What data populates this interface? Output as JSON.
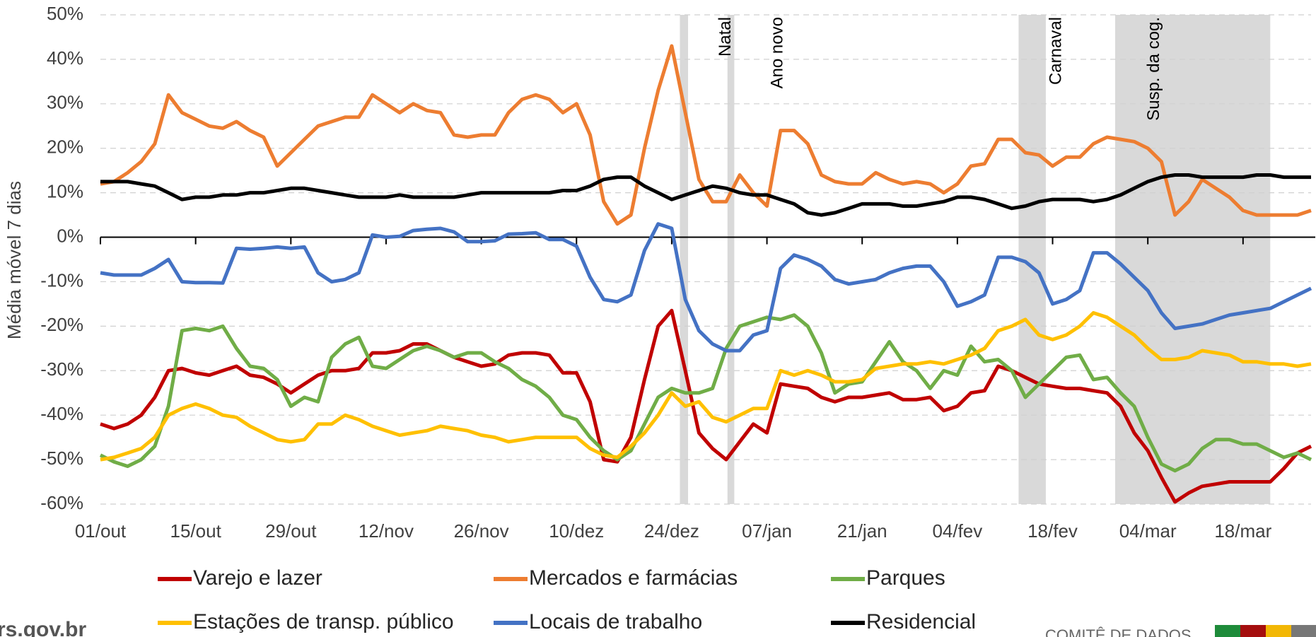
{
  "chart_data": {
    "type": "line",
    "y_label": "Média móvel 7 dias",
    "categories": [
      "01/out",
      null,
      null,
      null,
      null,
      null,
      null,
      "15/out",
      null,
      null,
      null,
      null,
      null,
      null,
      "29/out",
      null,
      null,
      null,
      null,
      null,
      null,
      "12/nov",
      null,
      null,
      null,
      null,
      null,
      null,
      "26/nov",
      null,
      null,
      null,
      null,
      null,
      null,
      "10/dez",
      null,
      null,
      null,
      null,
      null,
      null,
      "24/dez",
      null,
      null,
      null,
      null,
      null,
      null,
      "07/jan",
      null,
      null,
      null,
      null,
      null,
      null,
      "21/jan",
      null,
      null,
      null,
      null,
      null,
      null,
      "04/fev",
      null,
      null,
      null,
      null,
      null,
      null,
      "18/fev",
      null,
      null,
      null,
      null,
      null,
      null,
      "04/mar",
      null,
      null,
      null,
      null,
      null,
      null,
      "18/mar",
      null,
      null,
      null,
      null,
      null
    ],
    "ylim": [
      -60,
      50
    ],
    "yticks": [
      {
        "value": -60,
        "label": "-60%"
      },
      {
        "value": -50,
        "label": "-50%"
      },
      {
        "value": -40,
        "label": "-40%"
      },
      {
        "value": -30,
        "label": "-30%"
      },
      {
        "value": -20,
        "label": "-20%"
      },
      {
        "value": -10,
        "label": "-10%"
      },
      {
        "value": 0,
        "label": "0%"
      },
      {
        "value": 10,
        "label": "10%"
      },
      {
        "value": 20,
        "label": "20%"
      },
      {
        "value": 30,
        "label": "30%"
      },
      {
        "value": 40,
        "label": "40%"
      },
      {
        "value": 50,
        "label": "50%"
      }
    ],
    "grid": true,
    "annotations": [
      "Natal",
      "Ano novo",
      "Carnaval",
      "Susp. da cog."
    ],
    "series": [
      {
        "name": "Varejo e lazer",
        "color": "#c00000",
        "values": [
          -42,
          -43,
          -42,
          -40,
          -36,
          -30,
          -29.5,
          -30.5,
          -31,
          -30,
          -29,
          -31,
          -31.5,
          -33,
          -35,
          -33,
          -31,
          -30,
          -30,
          -29.5,
          -26,
          -26,
          -25.5,
          -24,
          -24,
          -25.5,
          -27,
          -28,
          -29,
          -28.5,
          -26.5,
          -26,
          -26,
          -26.5,
          -30.5,
          -30.5,
          -37,
          -50,
          -50.5,
          -45,
          -32,
          -20,
          -16.5,
          -30,
          -44,
          -47.5,
          -50,
          -46,
          -42,
          -44,
          -33,
          -33.5,
          -34,
          -36,
          -37,
          -36,
          -36,
          -35.5,
          -35,
          -36.5,
          -36.5,
          -36,
          -39,
          -38,
          -35,
          -34.5,
          -29,
          -30,
          -31.5,
          -33,
          -33.5,
          -34,
          -34,
          -34.5,
          -35,
          -38,
          -44,
          -48,
          -54,
          -59.5,
          -57.5,
          -56,
          -55.5,
          -55,
          -55,
          -55,
          -55,
          -52,
          -48.5,
          -47
        ]
      },
      {
        "name": "Mercados e farmácias",
        "color": "#ed7d31",
        "values": [
          12,
          12.5,
          14.5,
          17,
          21,
          32,
          28,
          26.5,
          25,
          24.5,
          26,
          24,
          22.5,
          16,
          19,
          22,
          25,
          26,
          27,
          27,
          32,
          30,
          28,
          30,
          28.5,
          28,
          23,
          22.5,
          23,
          23,
          28,
          31,
          32,
          31,
          28,
          30,
          23,
          8,
          3,
          5,
          20,
          33,
          43,
          28,
          13,
          8,
          8,
          14,
          10,
          7,
          24,
          24,
          21,
          14,
          12.5,
          12,
          12,
          14.5,
          13,
          12,
          12.5,
          12,
          10,
          12,
          16,
          16.5,
          22,
          22,
          19,
          18.5,
          16,
          18,
          18,
          21,
          22.5,
          22,
          21.5,
          20,
          17,
          5,
          8,
          13,
          11,
          9,
          6,
          5,
          5,
          5,
          5,
          6
        ]
      },
      {
        "name": "Parques",
        "color": "#70ad47",
        "values": [
          -49,
          -50.5,
          -51.5,
          -50,
          -47,
          -38,
          -21,
          -20.5,
          -21,
          -20,
          -25,
          -29,
          -29.5,
          -32,
          -38,
          -36,
          -37,
          -27,
          -24,
          -22.5,
          -29,
          -29.5,
          -27.5,
          -25.5,
          -24.5,
          -25.5,
          -27,
          -26,
          -26,
          -28,
          -29.5,
          -32,
          -33.5,
          -36,
          -40,
          -41,
          -45,
          -48,
          -50,
          -48,
          -42,
          -36,
          -34,
          -35,
          -35,
          -34,
          -25,
          -20,
          -19,
          -18,
          -18.5,
          -17.5,
          -20,
          -26,
          -35,
          -33,
          -32.5,
          -28,
          -23.5,
          -28,
          -30,
          -34,
          -30,
          -31,
          -24.5,
          -28,
          -27.5,
          -30,
          -36,
          -33,
          -30,
          -27,
          -26.5,
          -32,
          -31.5,
          -35,
          -38,
          -45,
          -51,
          -52.5,
          -51,
          -47.5,
          -45.5,
          -45.5,
          -46.5,
          -46.5,
          -48,
          -49.5,
          -48.5,
          -50
        ]
      },
      {
        "name": "Estações de transp. público",
        "color": "#ffc000",
        "values": [
          -50,
          -49.5,
          -48.5,
          -47.5,
          -45,
          -40,
          -38.5,
          -37.5,
          -38.5,
          -40,
          -40.5,
          -42.5,
          -44,
          -45.5,
          -46,
          -45.5,
          -42,
          -42,
          -40,
          -41,
          -42.5,
          -43.5,
          -44.5,
          -44,
          -43.5,
          -42.5,
          -43,
          -43.5,
          -44.5,
          -45,
          -46,
          -45.5,
          -45,
          -45,
          -45,
          -45,
          -47.5,
          -49,
          -49.5,
          -47,
          -44,
          -40,
          -35,
          -38,
          -37,
          -40.5,
          -41.5,
          -40,
          -38.5,
          -38.5,
          -30,
          -31,
          -30,
          -31,
          -32.5,
          -32.5,
          -32,
          -29.5,
          -29,
          -28.5,
          -28.5,
          -28,
          -28.5,
          -27.5,
          -26.5,
          -25,
          -21,
          -20,
          -18.5,
          -22,
          -23,
          -22,
          -20,
          -17,
          -18,
          -20,
          -22,
          -25,
          -27.5,
          -27.5,
          -27,
          -25.5,
          -26,
          -26.5,
          -28,
          -28,
          -28.5,
          -28.5,
          -29,
          -28.5
        ]
      },
      {
        "name": "Locais de trabalho",
        "color": "#4472c4",
        "values": [
          -8,
          -8.5,
          -8.5,
          -8.5,
          -7,
          -5,
          -10,
          -10.2,
          -10.2,
          -10.3,
          -2.5,
          -2.7,
          -2.5,
          -2.2,
          -2.5,
          -2.2,
          -8,
          -10,
          -9.5,
          -8,
          0.5,
          0,
          0.2,
          1.5,
          1.8,
          2,
          1.2,
          -1,
          -1,
          -0.8,
          0.7,
          0.8,
          1,
          -0.5,
          -0.5,
          -2,
          -9,
          -14,
          -14.5,
          -13,
          -3,
          3,
          2,
          -14,
          -21,
          -24,
          -25.5,
          -25.5,
          -22,
          -21,
          -7,
          -4,
          -5,
          -6.5,
          -9.5,
          -10.5,
          -10,
          -9.5,
          -8,
          -7,
          -6.5,
          -6.5,
          -10,
          -15.5,
          -14.5,
          -13,
          -4.5,
          -4.5,
          -5.5,
          -8,
          -15,
          -14,
          -12,
          -3.5,
          -3.5,
          -6,
          -9,
          -12,
          -17,
          -20.5,
          -20,
          -19.5,
          -18.5,
          -17.5,
          -17,
          -16.5,
          -16,
          -14.5,
          -13,
          -11.5
        ]
      },
      {
        "name": "Residencial",
        "color": "#000000",
        "values": [
          12.5,
          12.5,
          12.5,
          12,
          11.5,
          10,
          8.5,
          9,
          9,
          9.5,
          9.5,
          10,
          10,
          10.5,
          11,
          11,
          10.5,
          10,
          9.5,
          9,
          9,
          9,
          9.5,
          9,
          9,
          9,
          9,
          9.5,
          10,
          10,
          10,
          10,
          10,
          10,
          10.5,
          10.5,
          11.5,
          13,
          13.5,
          13.5,
          11.5,
          10,
          8.5,
          9.5,
          10.5,
          11.5,
          11,
          10,
          9.5,
          9.5,
          8.5,
          7.5,
          5.5,
          5,
          5.5,
          6.5,
          7.5,
          7.5,
          7.5,
          7,
          7,
          7.5,
          8,
          9,
          9,
          8.5,
          7.5,
          6.5,
          7,
          8,
          8.5,
          8.5,
          8.5,
          8,
          8.5,
          9.5,
          11,
          12.5,
          13.5,
          14,
          14,
          13.5,
          13.5,
          13.5,
          13.5,
          14,
          14,
          13.5,
          13.5,
          13.5
        ]
      }
    ],
    "footer_left": "rs.gov.br",
    "footer_right": "COMITÊ DE DADOS"
  }
}
